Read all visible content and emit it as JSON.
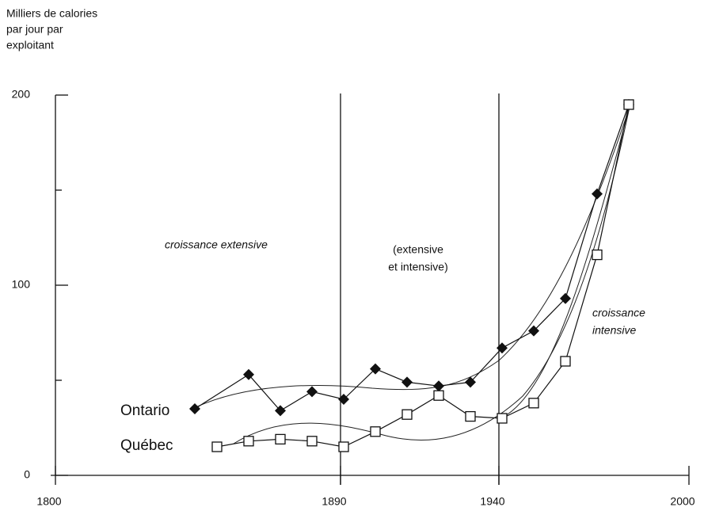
{
  "chart_data": {
    "type": "line",
    "y_label": [
      "Milliers de calories",
      "par jour par",
      "exploitant"
    ],
    "xlim": [
      1800,
      2000
    ],
    "xticks": [
      1800,
      1890,
      1940,
      2000
    ],
    "ylim": [
      0,
      200
    ],
    "yticks": [
      0,
      100,
      200
    ],
    "yminor_ticks": [
      50,
      150
    ],
    "period_lines": [
      1890,
      1940
    ],
    "annotations": [
      [
        "croissance extensive"
      ],
      [
        "(extensive",
        "et intensive)"
      ],
      [
        "croissance",
        "intensive"
      ]
    ],
    "series": [
      {
        "name": "Ontario",
        "color": "#111",
        "marker": "diamond",
        "x": [
          1844,
          1861,
          1871,
          1881,
          1891,
          1901,
          1911,
          1921,
          1931,
          1941,
          1951,
          1961,
          1971,
          1981
        ],
        "values": [
          35,
          53,
          34,
          44,
          40,
          56,
          49,
          47,
          49,
          67,
          76,
          93,
          148,
          195
        ]
      },
      {
        "name": "Québec",
        "color": "#111",
        "marker": "square",
        "x": [
          1851,
          1861,
          1871,
          1881,
          1891,
          1901,
          1911,
          1921,
          1931,
          1941,
          1951,
          1961,
          1971,
          1981
        ],
        "values": [
          15,
          18,
          19,
          18,
          15,
          23,
          32,
          42,
          31,
          30,
          38,
          60,
          116,
          195
        ]
      }
    ]
  }
}
